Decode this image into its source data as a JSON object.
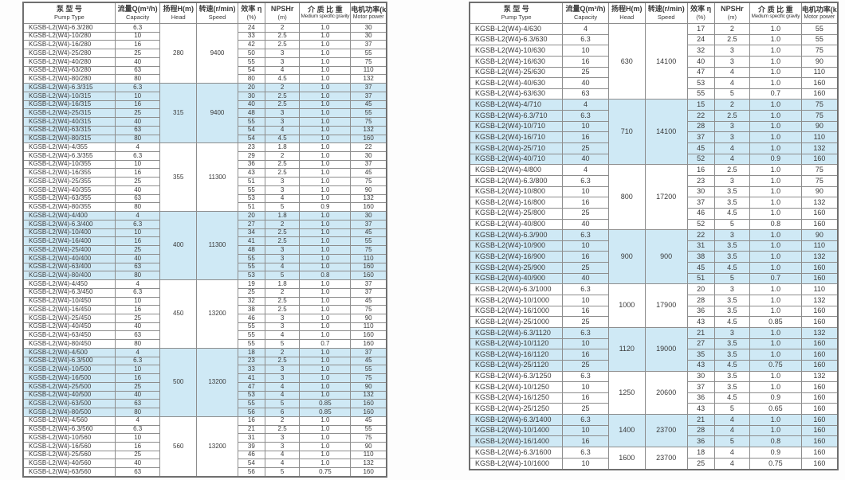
{
  "page": {
    "background": "#ffffff",
    "grid_color": "#8d8d8d",
    "text_color": "#3a3a3a",
    "group_shade_color": "#cfe9f5"
  },
  "columns": [
    {
      "id": "pump_type",
      "zh": "泵 型 号",
      "en": "Pump Type"
    },
    {
      "id": "capacity",
      "zh": "流量Q(m³/h)",
      "en": "Capacity"
    },
    {
      "id": "head",
      "zh": "扬程H(m)",
      "en": "Head"
    },
    {
      "id": "speed",
      "zh": "转速(r/min)",
      "en": "Speed"
    },
    {
      "id": "efficiency",
      "zh": "效率 η",
      "en": "(%)"
    },
    {
      "id": "npshr",
      "zh": "NPSHr",
      "en": "(m)"
    },
    {
      "id": "gravity",
      "zh": "介 质 比 重",
      "en": "Medium specific gravity"
    },
    {
      "id": "power",
      "zh": "电机功率(kW)",
      "en": "Motor power"
    }
  ],
  "left_table": {
    "groups": [
      {
        "head": "280",
        "speed": "9400",
        "shaded": false,
        "rows": [
          [
            "KGSB-L2(W4)-6.3/280",
            "6.3",
            "24",
            "2",
            "1.0",
            "30"
          ],
          [
            "KGSB-L2(W4)-10/280",
            "10",
            "33",
            "2.5",
            "1.0",
            "30"
          ],
          [
            "KGSB-L2(W4)-16/280",
            "16",
            "42",
            "2.5",
            "1.0",
            "37"
          ],
          [
            "KGSB-L2(W4)-25/280",
            "25",
            "50",
            "3",
            "1.0",
            "55"
          ],
          [
            "KGSB-L2(W4)-40/280",
            "40",
            "55",
            "3",
            "1.0",
            "75"
          ],
          [
            "KGSB-L2(W4)-63/280",
            "63",
            "54",
            "4",
            "1.0",
            "110"
          ],
          [
            "KGSB-L2(W4)-80/280",
            "80",
            "80",
            "4.5",
            "1.0",
            "132"
          ]
        ]
      },
      {
        "head": "315",
        "speed": "9400",
        "shaded": true,
        "rows": [
          [
            "KGSB-L2(W4)-6.3/315",
            "6.3",
            "20",
            "2",
            "1.0",
            "37"
          ],
          [
            "KGSB-L2(W4)-10/315",
            "10",
            "30",
            "2.5",
            "1.0",
            "37"
          ],
          [
            "KGSB-L2(W4)-16/315",
            "16",
            "40",
            "2.5",
            "1.0",
            "45"
          ],
          [
            "KGSB-L2(W4)-25/315",
            "25",
            "48",
            "3",
            "1.0",
            "55"
          ],
          [
            "KGSB-L2(W4)-40/315",
            "40",
            "55",
            "3",
            "1.0",
            "75"
          ],
          [
            "KGSB-L2(W4)-63/315",
            "63",
            "54",
            "4",
            "1.0",
            "132"
          ],
          [
            "KGSB-L2(W4)-80/315",
            "80",
            "54",
            "4.5",
            "1.0",
            "160"
          ]
        ]
      },
      {
        "head": "355",
        "speed": "11300",
        "shaded": false,
        "rows": [
          [
            "KGSB-L2(W4)-4/355",
            "4",
            "23",
            "1.8",
            "1.0",
            "22"
          ],
          [
            "KGSB-L2(W4)-6.3/355",
            "6.3",
            "29",
            "2",
            "1.0",
            "30"
          ],
          [
            "KGSB-L2(W4)-10/355",
            "10",
            "36",
            "2.5",
            "1.0",
            "37"
          ],
          [
            "KGSB-L2(W4)-16/355",
            "16",
            "43",
            "2.5",
            "1.0",
            "45"
          ],
          [
            "KGSB-L2(W4)-25/355",
            "25",
            "51",
            "3",
            "1.0",
            "75"
          ],
          [
            "KGSB-L2(W4)-40/355",
            "40",
            "55",
            "3",
            "1.0",
            "90"
          ],
          [
            "KGSB-L2(W4)-63/355",
            "63",
            "53",
            "4",
            "1.0",
            "132"
          ],
          [
            "KGSB-L2(W4)-80/355",
            "80",
            "51",
            "5",
            "0.9",
            "160"
          ]
        ]
      },
      {
        "head": "400",
        "speed": "11300",
        "shaded": true,
        "rows": [
          [
            "KGSB-L2(W4)-4/400",
            "4",
            "20",
            "1.8",
            "1.0",
            "30"
          ],
          [
            "KGSB-L2(W4)-6.3/400",
            "6.3",
            "27",
            "2",
            "1.0",
            "37"
          ],
          [
            "KGSB-L2(W4)-10/400",
            "10",
            "34",
            "2.5",
            "1.0",
            "45"
          ],
          [
            "KGSB-L2(W4)-16/400",
            "16",
            "41",
            "2.5",
            "1.0",
            "55"
          ],
          [
            "KGSB-L2(W4)-25/400",
            "25",
            "48",
            "3",
            "1.0",
            "75"
          ],
          [
            "KGSB-L2(W4)-40/400",
            "40",
            "55",
            "3",
            "1.0",
            "110"
          ],
          [
            "KGSB-L2(W4)-63/400",
            "63",
            "55",
            "4",
            "1.0",
            "160"
          ],
          [
            "KGSB-L2(W4)-80/400",
            "80",
            "53",
            "5",
            "0.8",
            "160"
          ]
        ]
      },
      {
        "head": "450",
        "speed": "13200",
        "shaded": false,
        "rows": [
          [
            "KGSB-L2(W4)-4/450",
            "4",
            "19",
            "1.8",
            "1.0",
            "37"
          ],
          [
            "KGSB-L2(W4)-6.3/450",
            "6.3",
            "25",
            "2",
            "1.0",
            "37"
          ],
          [
            "KGSB-L2(W4)-10/450",
            "10",
            "32",
            "2.5",
            "1.0",
            "45"
          ],
          [
            "KGSB-L2(W4)-16/450",
            "16",
            "38",
            "2.5",
            "1.0",
            "75"
          ],
          [
            "KGSB-L2(W4)-25/450",
            "25",
            "46",
            "3",
            "1.0",
            "90"
          ],
          [
            "KGSB-L2(W4)-40/450",
            "40",
            "55",
            "3",
            "1.0",
            "110"
          ],
          [
            "KGSB-L2(W4)-63/450",
            "63",
            "55",
            "4",
            "1.0",
            "160"
          ],
          [
            "KGSB-L2(W4)-80/450",
            "80",
            "55",
            "5",
            "0.7",
            "160"
          ]
        ]
      },
      {
        "head": "500",
        "speed": "13200",
        "shaded": true,
        "rows": [
          [
            "KGSB-L2(W4)-4/500",
            "4",
            "18",
            "2",
            "1.0",
            "37"
          ],
          [
            "KGSB-L2(W4)-6.3/500",
            "6.3",
            "23",
            "2.5",
            "1.0",
            "45"
          ],
          [
            "KGSB-L2(W4)-10/500",
            "10",
            "33",
            "3",
            "1.0",
            "55"
          ],
          [
            "KGSB-L2(W4)-16/500",
            "16",
            "41",
            "3",
            "1.0",
            "75"
          ],
          [
            "KGSB-L2(W4)-25/500",
            "25",
            "47",
            "4",
            "1.0",
            "90"
          ],
          [
            "KGSB-L2(W4)-40/500",
            "40",
            "53",
            "4",
            "1.0",
            "132"
          ],
          [
            "KGSB-L2(W4)-63/500",
            "63",
            "55",
            "5",
            "0.85",
            "160"
          ],
          [
            "KGSB-L2(W4)-80/500",
            "80",
            "56",
            "6",
            "0.85",
            "160"
          ]
        ]
      },
      {
        "head": "560",
        "speed": "13200",
        "shaded": false,
        "rows": [
          [
            "KGSB-L2(W4)-4/560",
            "4",
            "16",
            "2",
            "1.0",
            "45"
          ],
          [
            "KGSB-L2(W4)-6.3/560",
            "6.3",
            "21",
            "2.5",
            "1.0",
            "55"
          ],
          [
            "KGSB-L2(W4)-10/560",
            "10",
            "31",
            "3",
            "1.0",
            "75"
          ],
          [
            "KGSB-L2(W4)-16/560",
            "16",
            "39",
            "3",
            "1.0",
            "90"
          ],
          [
            "KGSB-L2(W4)-25/560",
            "25",
            "46",
            "4",
            "1.0",
            "110"
          ],
          [
            "KGSB-L2(W4)-40/560",
            "40",
            "54",
            "4",
            "1.0",
            "132"
          ],
          [
            "KGSB-L2(W4)-63/560",
            "63",
            "56",
            "5",
            "0.75",
            "160"
          ]
        ]
      }
    ]
  },
  "right_table": {
    "groups": [
      {
        "head": "630",
        "speed": "14100",
        "shaded": false,
        "rows": [
          [
            "KGSB-L2(W4)-4/630",
            "4",
            "17",
            "2",
            "1.0",
            "55"
          ],
          [
            "KGSB-L2(W4)-6.3/630",
            "6.3",
            "24",
            "2.5",
            "1.0",
            "55"
          ],
          [
            "KGSB-L2(W4)-10/630",
            "10",
            "32",
            "3",
            "1.0",
            "75"
          ],
          [
            "KGSB-L2(W4)-16/630",
            "16",
            "40",
            "3",
            "1.0",
            "90"
          ],
          [
            "KGSB-L2(W4)-25/630",
            "25",
            "47",
            "4",
            "1.0",
            "110"
          ],
          [
            "KGSB-L2(W4)-40/630",
            "40",
            "53",
            "4",
            "1.0",
            "160"
          ],
          [
            "KGSB-L2(W4)-63/630",
            "63",
            "55",
            "5",
            "0.7",
            "160"
          ]
        ]
      },
      {
        "head": "710",
        "speed": "14100",
        "shaded": true,
        "rows": [
          [
            "KGSB-L2(W4)-4/710",
            "4",
            "15",
            "2",
            "1.0",
            "75"
          ],
          [
            "KGSB-L2(W4)-6.3/710",
            "6.3",
            "22",
            "2.5",
            "1.0",
            "75"
          ],
          [
            "KGSB-L2(W4)-10/710",
            "10",
            "28",
            "3",
            "1.0",
            "90"
          ],
          [
            "KGSB-L2(W4)-16/710",
            "16",
            "37",
            "3",
            "1.0",
            "110"
          ],
          [
            "KGSB-L2(W4)-25/710",
            "25",
            "45",
            "4",
            "1.0",
            "132"
          ],
          [
            "KGSB-L2(W4)-40/710",
            "40",
            "52",
            "4",
            "0.9",
            "160"
          ]
        ]
      },
      {
        "head": "800",
        "speed": "17200",
        "shaded": false,
        "rows": [
          [
            "KGSB-L2(W4)-4/800",
            "4",
            "16",
            "2.5",
            "1.0",
            "75"
          ],
          [
            "KGSB-L2(W4)-6.3/800",
            "6.3",
            "23",
            "3",
            "1.0",
            "75"
          ],
          [
            "KGSB-L2(W4)-10/800",
            "10",
            "30",
            "3.5",
            "1.0",
            "90"
          ],
          [
            "KGSB-L2(W4)-16/800",
            "16",
            "37",
            "3.5",
            "1.0",
            "132"
          ],
          [
            "KGSB-L2(W4)-25/800",
            "25",
            "46",
            "4.5",
            "1.0",
            "160"
          ],
          [
            "KGSB-L2(W4)-40/800",
            "40",
            "52",
            "5",
            "0.8",
            "160"
          ]
        ]
      },
      {
        "head": "900",
        "speed": "900",
        "shaded": true,
        "rows": [
          [
            "KGSB-L2(W4)-6.3/900",
            "6.3",
            "22",
            "3",
            "1.0",
            "90"
          ],
          [
            "KGSB-L2(W4)-10/900",
            "10",
            "31",
            "3.5",
            "1.0",
            "110"
          ],
          [
            "KGSB-L2(W4)-16/900",
            "16",
            "38",
            "3.5",
            "1.0",
            "132"
          ],
          [
            "KGSB-L2(W4)-25/900",
            "25",
            "45",
            "4.5",
            "1.0",
            "160"
          ],
          [
            "KGSB-L2(W4)-40/900",
            "40",
            "51",
            "5",
            "0.7",
            "160"
          ]
        ]
      },
      {
        "head": "1000",
        "speed": "17900",
        "shaded": false,
        "rows": [
          [
            "KGSB-L2(W4)-6.3/1000",
            "6.3",
            "20",
            "3",
            "1.0",
            "110"
          ],
          [
            "KGSB-L2(W4)-10/1000",
            "10",
            "28",
            "3.5",
            "1.0",
            "132"
          ],
          [
            "KGSB-L2(W4)-16/1000",
            "16",
            "36",
            "3.5",
            "1.0",
            "160"
          ],
          [
            "KGSB-L2(W4)-25/1000",
            "25",
            "43",
            "4.5",
            "0.85",
            "160"
          ]
        ]
      },
      {
        "head": "1120",
        "speed": "19000",
        "shaded": true,
        "rows": [
          [
            "KGSB-L2(W4)-6.3/1120",
            "6.3",
            "21",
            "3",
            "1.0",
            "132"
          ],
          [
            "KGSB-L2(W4)-10/1120",
            "10",
            "27",
            "3.5",
            "1.0",
            "160"
          ],
          [
            "KGSB-L2(W4)-16/1120",
            "16",
            "35",
            "3.5",
            "1.0",
            "160"
          ],
          [
            "KGSB-L2(W4)-25/1120",
            "25",
            "43",
            "4.5",
            "0.75",
            "160"
          ]
        ]
      },
      {
        "head": "1250",
        "speed": "20600",
        "shaded": false,
        "rows": [
          [
            "KGSB-L2(W4)-6.3/1250",
            "6.3",
            "30",
            "3.5",
            "1.0",
            "132"
          ],
          [
            "KGSB-L2(W4)-10/1250",
            "10",
            "37",
            "3.5",
            "1.0",
            "160"
          ],
          [
            "KGSB-L2(W4)-16/1250",
            "16",
            "36",
            "4.5",
            "0.9",
            "160"
          ],
          [
            "KGSB-L2(W4)-25/1250",
            "25",
            "43",
            "5",
            "0.65",
            "160"
          ]
        ]
      },
      {
        "head": "1400",
        "speed": "23700",
        "shaded": true,
        "rows": [
          [
            "KGSB-L2(W4)-6.3/1400",
            "6.3",
            "21",
            "4",
            "1.0",
            "160"
          ],
          [
            "KGSB-L2(W4)-10/1400",
            "10",
            "28",
            "4",
            "1.0",
            "160"
          ],
          [
            "KGSB-L2(W4)-16/1400",
            "16",
            "36",
            "5",
            "0.8",
            "160"
          ]
        ]
      },
      {
        "head": "1600",
        "speed": "23700",
        "shaded": false,
        "rows": [
          [
            "KGSB-L2(W4)-6.3/1600",
            "6.3",
            "18",
            "4",
            "0.9",
            "160"
          ],
          [
            "KGSB-L2(W4)-10/1600",
            "10",
            "25",
            "4",
            "0.75",
            "160"
          ]
        ]
      }
    ]
  }
}
